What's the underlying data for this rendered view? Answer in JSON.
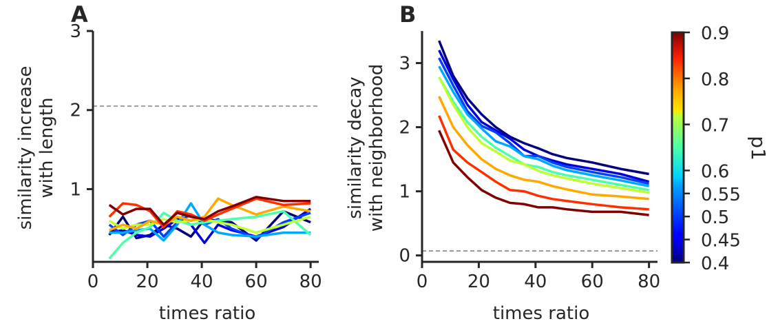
{
  "colorbar": {
    "label": "p1",
    "ticks": [
      0.4,
      0.45,
      0.5,
      0.55,
      0.6,
      0.7,
      0.8,
      0.9
    ],
    "tick_labels": [
      "0.4",
      "0.45",
      "0.5",
      "0.55",
      "0.6",
      "0.7",
      "0.8",
      "0.9"
    ],
    "range": [
      0.4,
      0.9
    ],
    "colormap": "jet"
  },
  "chart_data": [
    {
      "type": "line",
      "panel_letter": "A",
      "xlabel": "times ratio",
      "ylabel_lines": [
        "similarity increase",
        "with length"
      ],
      "xlim": [
        0,
        83
      ],
      "ylim": [
        0.08,
        3
      ],
      "xticks": [
        0,
        20,
        40,
        60,
        80
      ],
      "xtick_labels": [
        "0",
        "20",
        "40",
        "60",
        "80"
      ],
      "yticks": [
        1,
        2,
        3
      ],
      "ytick_labels": [
        "1",
        "2",
        "3"
      ],
      "reference_line": 2.05,
      "x": [
        6,
        11,
        16,
        21,
        26,
        31,
        36,
        41,
        46,
        51,
        60,
        70,
        80
      ],
      "series": [
        {
          "p": 0.4,
          "color": "#00007f",
          "values": [
            0.42,
            0.65,
            0.38,
            0.42,
            0.55,
            0.5,
            0.4,
            0.62,
            0.6,
            0.58,
            0.35,
            0.72,
            0.58
          ]
        },
        {
          "p": 0.45,
          "color": "#0000d8",
          "values": [
            0.45,
            0.48,
            0.42,
            0.4,
            0.5,
            0.62,
            0.55,
            0.32,
            0.55,
            0.48,
            0.4,
            0.52,
            0.75
          ]
        },
        {
          "p": 0.5,
          "color": "#0040ff",
          "values": [
            0.55,
            0.42,
            0.55,
            0.6,
            0.4,
            0.58,
            0.68,
            0.55,
            0.62,
            0.5,
            0.38,
            0.58,
            0.7
          ]
        },
        {
          "p": 0.55,
          "color": "#00a8ff",
          "values": [
            0.45,
            0.45,
            0.48,
            0.5,
            0.35,
            0.55,
            0.82,
            0.55,
            0.45,
            0.42,
            0.4,
            0.45,
            0.45
          ]
        },
        {
          "p": 0.6,
          "color": "#4cffaa",
          "values": [
            0.12,
            0.32,
            0.45,
            0.52,
            0.7,
            0.6,
            0.55,
            0.58,
            0.6,
            0.62,
            0.65,
            0.72,
            0.42
          ]
        },
        {
          "p": 0.7,
          "color": "#c0ff36",
          "values": [
            0.6,
            0.5,
            0.55,
            0.55,
            0.62,
            0.58,
            0.6,
            0.62,
            0.58,
            0.55,
            0.45,
            0.55,
            0.65
          ]
        },
        {
          "p": 0.8,
          "color": "#ffa800",
          "values": [
            0.48,
            0.55,
            0.5,
            0.6,
            0.55,
            0.65,
            0.6,
            0.65,
            0.88,
            0.8,
            0.68,
            0.78,
            0.72
          ]
        },
        {
          "p": 0.85,
          "color": "#ff3000",
          "values": [
            0.65,
            0.82,
            0.8,
            0.72,
            0.52,
            0.72,
            0.68,
            0.6,
            0.68,
            0.75,
            0.88,
            0.8,
            0.82
          ]
        },
        {
          "p": 0.9,
          "color": "#7f0000",
          "values": [
            0.8,
            0.68,
            0.75,
            0.75,
            0.55,
            0.7,
            0.65,
            0.62,
            0.72,
            0.78,
            0.9,
            0.85,
            0.85
          ]
        }
      ]
    },
    {
      "type": "line",
      "panel_letter": "B",
      "xlabel": "times ratio",
      "ylabel_lines": [
        "similarity decay",
        "with neighborhood"
      ],
      "xlim": [
        0,
        83
      ],
      "ylim": [
        -0.1,
        3.5
      ],
      "xticks": [
        0,
        20,
        40,
        60,
        80
      ],
      "xtick_labels": [
        "0",
        "20",
        "40",
        "60",
        "80"
      ],
      "yticks": [
        0,
        1,
        2,
        3
      ],
      "ytick_labels": [
        "0",
        "1",
        "2",
        "3"
      ],
      "reference_line": 0.07,
      "x": [
        6,
        11,
        16,
        21,
        26,
        31,
        36,
        41,
        46,
        51,
        60,
        70,
        80
      ],
      "series": [
        {
          "p": 0.4,
          "color": "#00007f",
          "values": [
            3.35,
            2.8,
            2.45,
            2.2,
            2.0,
            1.85,
            1.75,
            1.67,
            1.58,
            1.52,
            1.45,
            1.35,
            1.27
          ]
        },
        {
          "p": 0.45,
          "color": "#0000d8",
          "values": [
            3.2,
            2.75,
            2.35,
            2.08,
            1.95,
            1.82,
            1.65,
            1.55,
            1.48,
            1.42,
            1.35,
            1.27,
            1.15
          ]
        },
        {
          "p": 0.5,
          "color": "#0040ff",
          "values": [
            3.08,
            2.65,
            2.25,
            2.02,
            1.92,
            1.75,
            1.55,
            1.55,
            1.45,
            1.38,
            1.3,
            1.22,
            1.12
          ]
        },
        {
          "p": 0.55,
          "color": "#00a8ff",
          "values": [
            2.95,
            2.55,
            2.2,
            1.98,
            1.78,
            1.7,
            1.55,
            1.5,
            1.4,
            1.33,
            1.25,
            1.17,
            1.08
          ]
        },
        {
          "p": 0.6,
          "color": "#4cffaa",
          "values": [
            2.78,
            2.4,
            2.08,
            1.85,
            1.68,
            1.55,
            1.42,
            1.38,
            1.3,
            1.25,
            1.18,
            1.1,
            1.02
          ]
        },
        {
          "p": 0.7,
          "color": "#c0ff36",
          "values": [
            2.78,
            2.35,
            2.0,
            1.75,
            1.62,
            1.48,
            1.42,
            1.32,
            1.25,
            1.2,
            1.12,
            1.05,
            0.98
          ]
        },
        {
          "p": 0.8,
          "color": "#ffa800",
          "values": [
            2.48,
            2.0,
            1.72,
            1.5,
            1.35,
            1.25,
            1.18,
            1.15,
            1.08,
            1.03,
            0.95,
            0.92,
            0.88
          ]
        },
        {
          "p": 0.85,
          "color": "#ff3000",
          "values": [
            2.18,
            1.65,
            1.45,
            1.3,
            1.15,
            1.02,
            1.0,
            0.93,
            0.88,
            0.85,
            0.8,
            0.75,
            0.72
          ]
        },
        {
          "p": 0.9,
          "color": "#7f0000",
          "values": [
            1.95,
            1.45,
            1.22,
            1.02,
            0.9,
            0.82,
            0.8,
            0.75,
            0.75,
            0.72,
            0.68,
            0.68,
            0.63
          ]
        }
      ]
    }
  ]
}
